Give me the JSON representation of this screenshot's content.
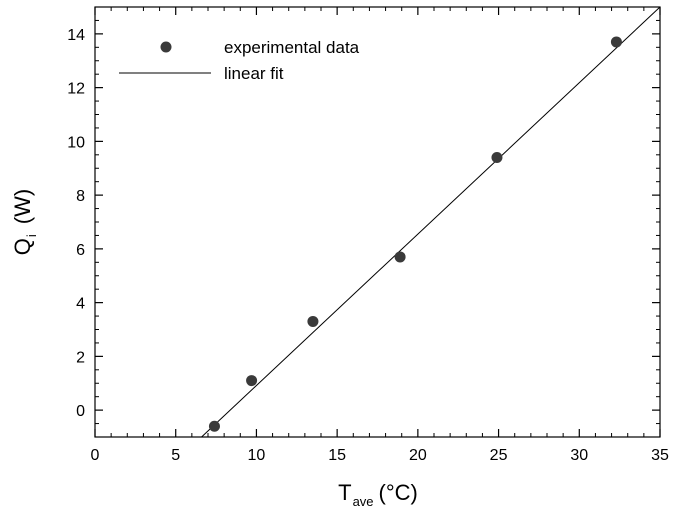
{
  "chart_data": {
    "type": "scatter",
    "title": "",
    "xlabel": {
      "main": "T",
      "sub": "ave",
      "unit": "(°C)"
    },
    "ylabel": {
      "main": "Q",
      "sub": "i",
      "unit": "(W)"
    },
    "xlim": [
      0,
      35
    ],
    "ylim": [
      -1,
      15
    ],
    "x_ticks": [
      0,
      5,
      10,
      15,
      20,
      25,
      30,
      35
    ],
    "y_ticks": [
      0,
      2,
      4,
      6,
      8,
      10,
      12,
      14
    ],
    "x_minor_step": 1,
    "y_minor_step": 0.5,
    "grid": false,
    "legend_position": "top-left",
    "series": [
      {
        "name": "experimental data",
        "kind": "points",
        "color": "#3a3a3a",
        "x": [
          7.4,
          9.7,
          13.5,
          18.9,
          24.9,
          32.3
        ],
        "y": [
          -0.6,
          1.1,
          3.3,
          5.7,
          9.4,
          13.7
        ]
      },
      {
        "name": "linear fit",
        "kind": "line",
        "color": "#000000",
        "x": [
          6.6,
          35
        ],
        "y": [
          -1,
          15
        ]
      }
    ]
  }
}
